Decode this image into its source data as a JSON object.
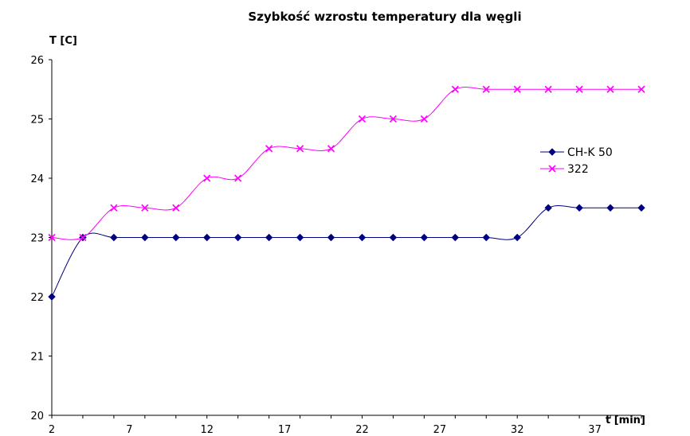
{
  "chart_data": {
    "type": "line",
    "title": "Szybkość wzrostu temperatury dla węgli",
    "ylabel": "T [C]",
    "xlabel": "t [min]",
    "ylim": [
      20,
      26
    ],
    "yticks": [
      "20",
      "21",
      "22",
      "23",
      "24",
      "25",
      "26"
    ],
    "xticks": [
      "2",
      "7",
      "12",
      "17",
      "22",
      "27",
      "32",
      "37"
    ],
    "x": [
      2,
      4,
      6,
      8,
      10,
      12,
      14,
      16,
      18,
      20,
      22,
      24,
      26,
      28,
      30,
      32,
      34,
      36,
      38,
      40
    ],
    "series": [
      {
        "name": "CH-K 50",
        "color": "#000080",
        "marker": "diamond",
        "values": [
          22,
          23,
          23,
          23,
          23,
          23,
          23,
          23,
          23,
          23,
          23,
          23,
          23,
          23,
          23,
          23,
          23.5,
          23.5,
          23.5,
          23.5
        ]
      },
      {
        "name": "322",
        "color": "#ff00ff",
        "marker": "x",
        "values": [
          23,
          23,
          23.5,
          23.5,
          23.5,
          24,
          24,
          24.5,
          24.5,
          24.5,
          25,
          25,
          25,
          25.5,
          25.5,
          25.5,
          25.5,
          25.5,
          25.5,
          25.5
        ]
      }
    ],
    "legend_position": "right",
    "grid": false
  }
}
